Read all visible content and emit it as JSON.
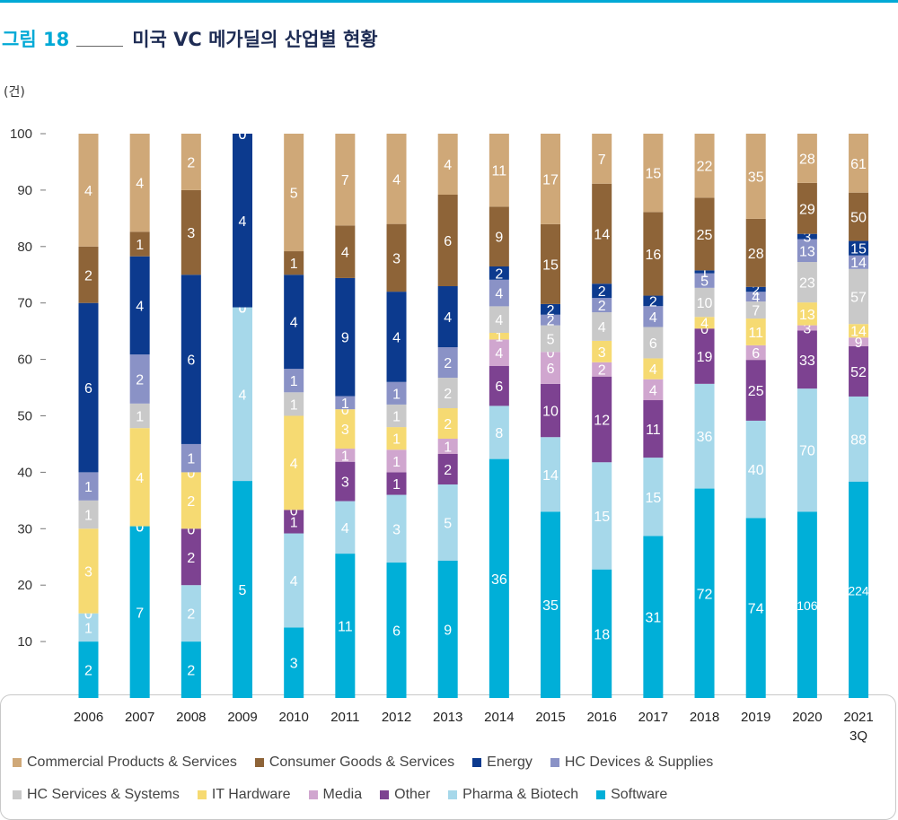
{
  "header": {
    "figure_label": "그림 18",
    "title": "미국 VC 메가딜의 산업별 현황",
    "unit": "(건)"
  },
  "colors": {
    "accent": "#00a9d6",
    "Commercial Products & Services": "#cfa878",
    "Consumer Goods & Services": "#8e6438",
    "Energy": "#0c3a8e",
    "HC Devices & Supplies": "#8a92c6",
    "HC Services & Systems": "#c9c9c9",
    "IT Hardware": "#f6da72",
    "Media": "#d0a6cf",
    "Other": "#7d4291",
    "Pharma & Biotech": "#a6d8ea",
    "Software": "#00afd8"
  },
  "chart_data": {
    "type": "bar",
    "stacked": "percent",
    "categories": [
      "2006",
      "2007",
      "2008",
      "2009",
      "2010",
      "2011",
      "2012",
      "2013",
      "2014",
      "2015",
      "2016",
      "2017",
      "2018",
      "2019",
      "2020",
      "2021 3Q"
    ],
    "ylim": [
      0,
      100
    ],
    "yticks": [
      10,
      20,
      30,
      40,
      50,
      60,
      70,
      80,
      90,
      100
    ],
    "grid": false,
    "legend_position": "bottom",
    "series": [
      {
        "name": "Software",
        "values": [
          2,
          7,
          2,
          5,
          3,
          11,
          6,
          9,
          36,
          35,
          18,
          31,
          72,
          74,
          106,
          224
        ]
      },
      {
        "name": "Pharma & Biotech",
        "values": [
          1,
          0,
          2,
          4,
          4,
          4,
          3,
          5,
          8,
          14,
          15,
          15,
          36,
          40,
          70,
          88
        ]
      },
      {
        "name": "Other",
        "values": [
          0,
          0,
          2,
          0,
          1,
          3,
          1,
          2,
          6,
          10,
          12,
          11,
          19,
          25,
          33,
          52
        ]
      },
      {
        "name": "Media",
        "values": [
          0,
          0,
          0,
          0,
          0,
          1,
          1,
          1,
          4,
          6,
          2,
          4,
          0,
          6,
          3,
          9
        ]
      },
      {
        "name": "IT Hardware",
        "values": [
          3,
          4,
          2,
          0,
          4,
          3,
          1,
          2,
          1,
          0,
          3,
          4,
          4,
          11,
          13,
          14
        ]
      },
      {
        "name": "HC Services & Systems",
        "values": [
          1,
          1,
          0,
          0,
          1,
          0,
          1,
          2,
          4,
          5,
          4,
          6,
          10,
          7,
          23,
          57
        ]
      },
      {
        "name": "HC Devices & Supplies",
        "values": [
          1,
          2,
          1,
          0,
          1,
          1,
          1,
          2,
          4,
          2,
          2,
          4,
          5,
          4,
          13,
          14
        ]
      },
      {
        "name": "Energy",
        "values": [
          6,
          4,
          6,
          4,
          4,
          9,
          4,
          4,
          2,
          2,
          2,
          2,
          1,
          2,
          3,
          15
        ]
      },
      {
        "name": "Consumer Goods & Services",
        "values": [
          2,
          1,
          3,
          0,
          1,
          4,
          3,
          6,
          9,
          15,
          14,
          16,
          25,
          28,
          29,
          50
        ]
      },
      {
        "name": "Commercial Products & Services",
        "values": [
          4,
          4,
          2,
          0,
          5,
          7,
          4,
          4,
          11,
          17,
          7,
          15,
          22,
          35,
          28,
          61
        ]
      }
    ],
    "legend": [
      [
        "Commercial Products & Services",
        "Consumer Goods & Services",
        "Energy",
        "HC Devices & Supplies"
      ],
      [
        "HC Services & Systems",
        "IT Hardware",
        "Media",
        "Other",
        "Pharma & Biotech",
        "Software"
      ]
    ]
  }
}
